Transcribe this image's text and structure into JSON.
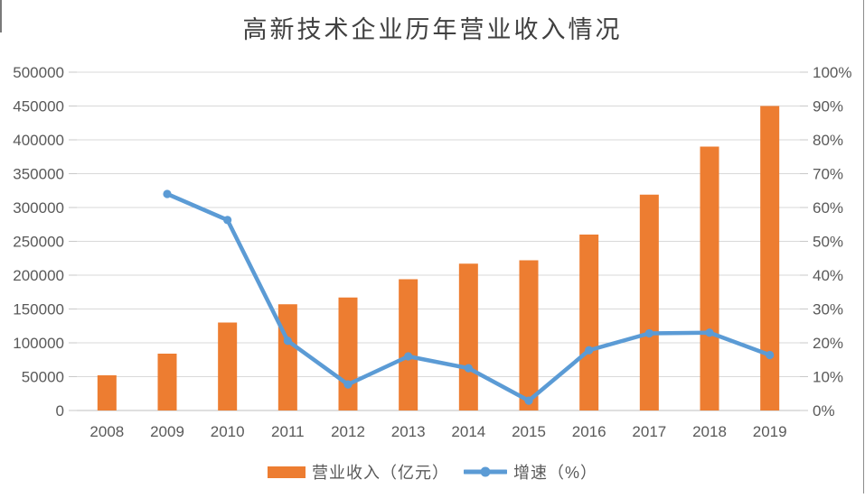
{
  "title": "高新技术企业历年营业收入情况",
  "colors": {
    "bar": "#ED7D31",
    "line": "#5B9BD5",
    "grid": "#D9D9D9",
    "axis_line": "#BFBFBF",
    "tick_mark": "#C9C9C9",
    "axis_text": "#595959",
    "title_text": "#404040",
    "background": "#FFFFFF"
  },
  "chart_data": {
    "type": "bar",
    "subtype": "combo-bar-line-dual-axis",
    "title": "高新技术企业历年营业收入情况",
    "categories": [
      "2008",
      "2009",
      "2010",
      "2011",
      "2012",
      "2013",
      "2014",
      "2015",
      "2016",
      "2017",
      "2018",
      "2019"
    ],
    "series": [
      {
        "name": "营业收入（亿元）",
        "type": "bar",
        "axis": "left",
        "color": "#ED7D31",
        "values": [
          52000,
          84000,
          130000,
          157000,
          167000,
          194000,
          217000,
          222000,
          260000,
          319000,
          390000,
          450000
        ]
      },
      {
        "name": "增速（%）",
        "type": "line",
        "axis": "right",
        "color": "#5B9BD5",
        "values": [
          null,
          64,
          56.3,
          20.6,
          7.7,
          16,
          12.5,
          2.9,
          17.8,
          22.8,
          23,
          16.4
        ]
      }
    ],
    "left_axis": {
      "min": 0,
      "max": 500000,
      "step": 50000,
      "tick_labels": [
        "0",
        "50000",
        "100000",
        "150000",
        "200000",
        "250000",
        "300000",
        "350000",
        "400000",
        "450000",
        "500000"
      ]
    },
    "right_axis": {
      "min": 0,
      "max": 100,
      "step": 10,
      "tick_labels": [
        "0%",
        "10%",
        "20%",
        "30%",
        "40%",
        "50%",
        "60%",
        "70%",
        "80%",
        "90%",
        "100%"
      ]
    },
    "grid": "horizontal-only",
    "legend_position": "bottom"
  }
}
